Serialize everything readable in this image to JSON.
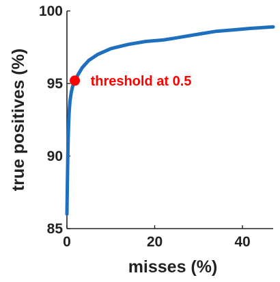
{
  "chart_data": {
    "type": "line",
    "title": "",
    "xlabel": "misses (%)",
    "ylabel": "true positives (%)",
    "xlim": [
      0,
      47
    ],
    "ylim": [
      85,
      100
    ],
    "xticks": [
      0,
      20,
      40
    ],
    "yticks": [
      85,
      90,
      95,
      100
    ],
    "xtick_labels": [
      "0",
      "20",
      "40"
    ],
    "ytick_labels": [
      "85",
      "90",
      "95",
      "100"
    ],
    "grid": false,
    "legend": "none",
    "series": [
      {
        "color": "#1f6fbf",
        "x": [
          0.0,
          0.1,
          0.2,
          0.3,
          0.4,
          0.5,
          0.7,
          1.0,
          1.3,
          1.8,
          2.5,
          3.5,
          5.0,
          7.0,
          10.0,
          14.0,
          18.0,
          22.0,
          26.0,
          30.0,
          34.0,
          38.0,
          42.0,
          47.0
        ],
        "y": [
          86.0,
          88.0,
          90.0,
          91.3,
          92.3,
          93.0,
          93.8,
          94.4,
          94.8,
          95.2,
          95.6,
          96.1,
          96.6,
          97.0,
          97.4,
          97.7,
          97.9,
          98.0,
          98.2,
          98.4,
          98.6,
          98.7,
          98.8,
          98.9
        ]
      }
    ],
    "annotations": [
      {
        "text": "threshold at 0.5",
        "x": 1.8,
        "y": 95.2,
        "color": "#ff0000"
      }
    ]
  }
}
